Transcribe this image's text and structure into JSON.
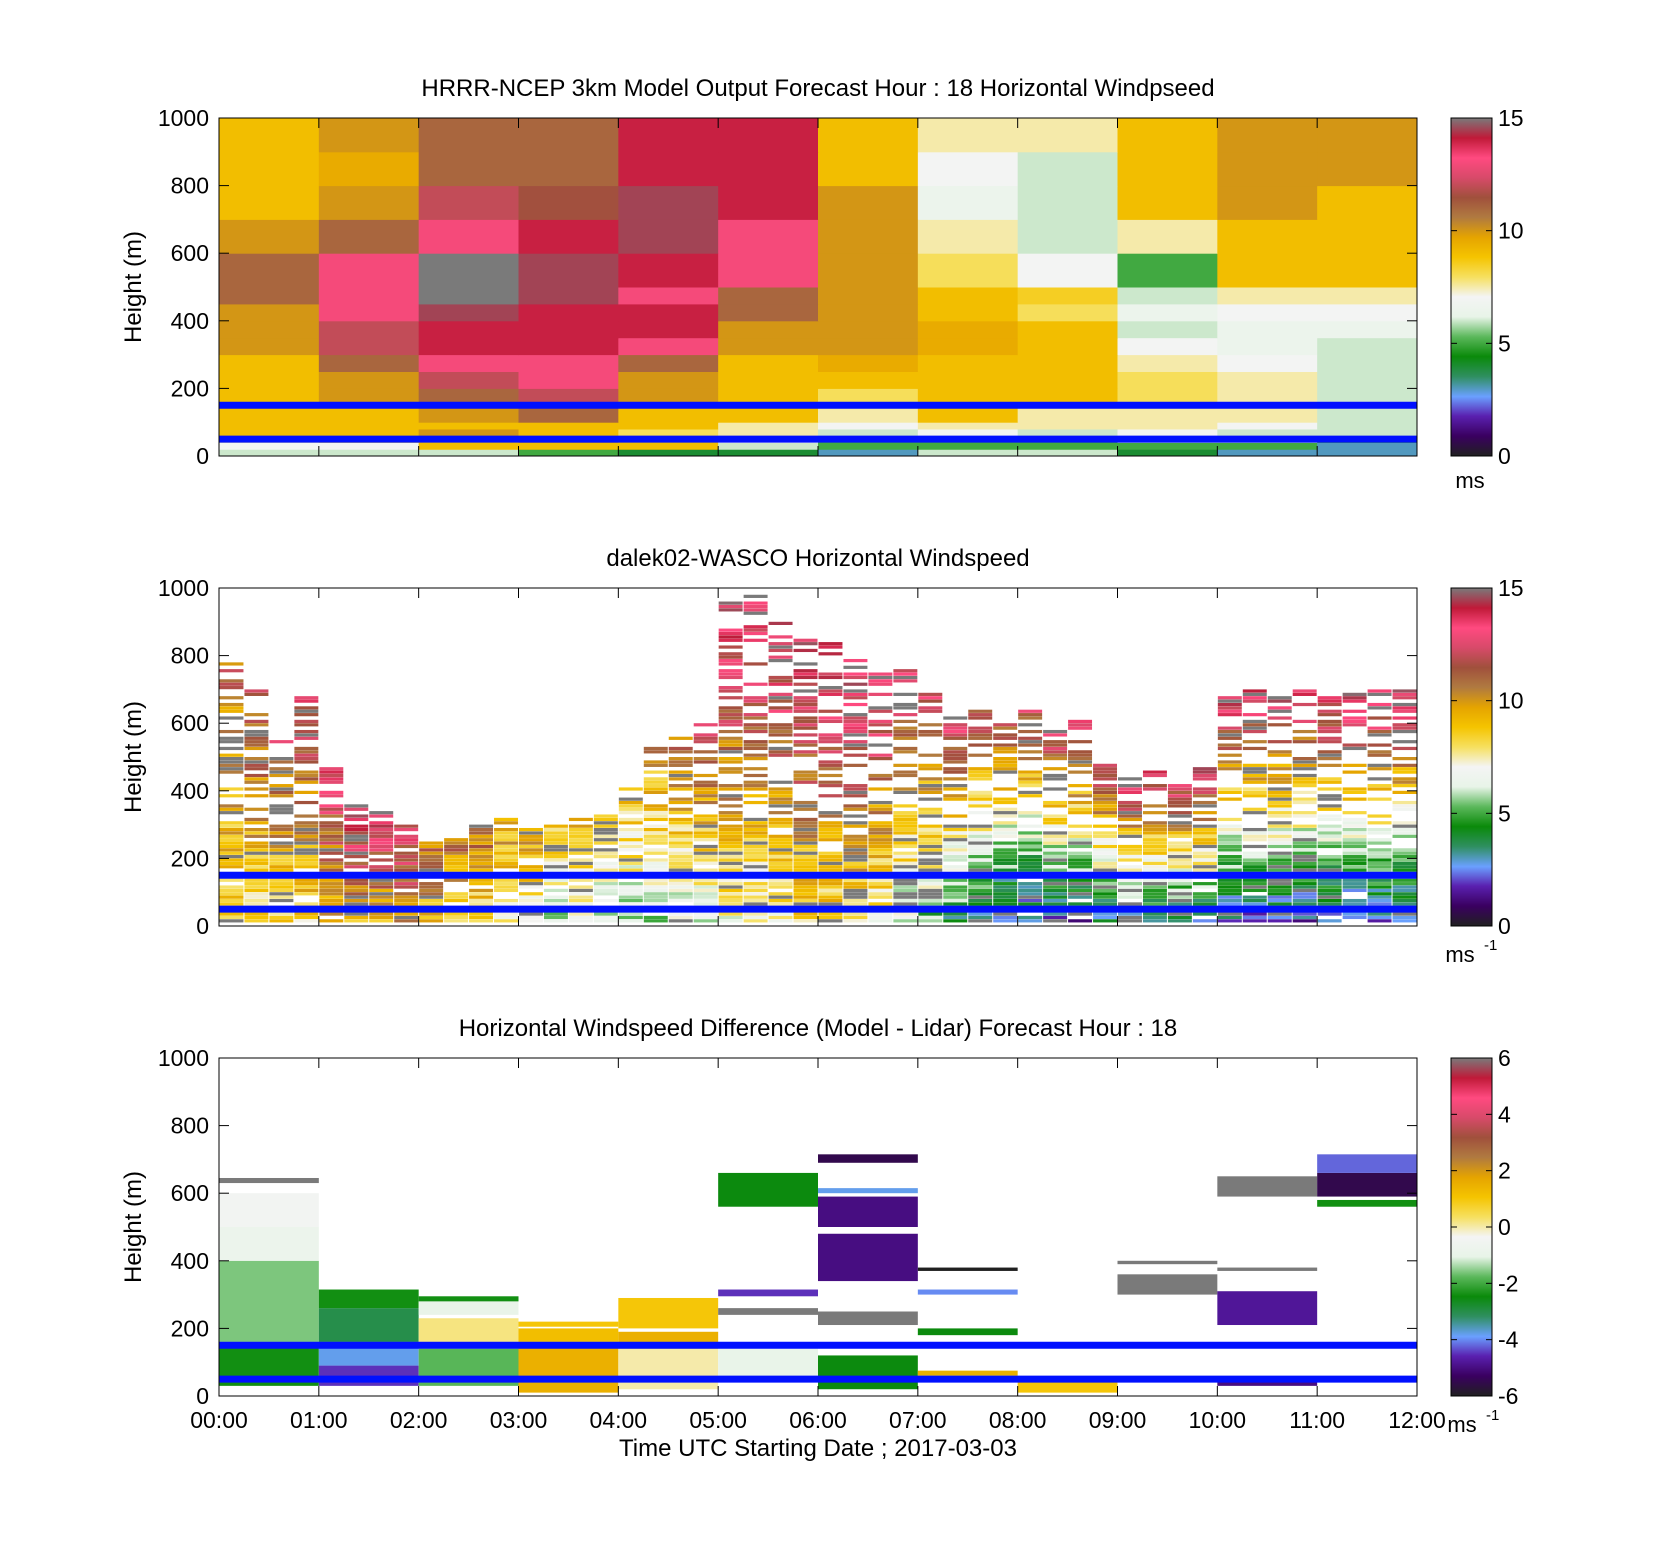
{
  "xlabel": "Time UTC  Starting Date ; 2017-03-03",
  "x_ticks": [
    "00:00",
    "01:00",
    "02:00",
    "03:00",
    "04:00",
    "05:00",
    "06:00",
    "07:00",
    "08:00",
    "09:00",
    "10:00",
    "11:00",
    "12:00"
  ],
  "reference_lines_m": [
    150,
    50
  ],
  "chart_data": [
    {
      "type": "heatmap",
      "title": "HRRR-NCEP 3km Model Output   Forecast Hour : 18 Horizontal Windpseed",
      "ylabel": "Height (m)",
      "ylim": [
        0,
        1000
      ],
      "y_ticks": [
        "0",
        "200",
        "400",
        "600",
        "800",
        "1000"
      ],
      "colorbar": {
        "range": [
          0,
          15
        ],
        "ticks": [
          "0",
          "5",
          "10",
          "15"
        ],
        "unit": "ms"
      },
      "x_hours": [
        0,
        1,
        2,
        3,
        4,
        5,
        6,
        7,
        8,
        9,
        10,
        11
      ],
      "y_bins_m": [
        20,
        40,
        60,
        80,
        100,
        150,
        200,
        250,
        300,
        350,
        400,
        450,
        500,
        600,
        700,
        800,
        900,
        1000
      ],
      "grid_values": [
        [
          6,
          6,
          6,
          5,
          4,
          4,
          3,
          6,
          6,
          4,
          3,
          3
        ],
        [
          7,
          7,
          9,
          9,
          9,
          6,
          5,
          5,
          5,
          5,
          5,
          3
        ],
        [
          7.5,
          8,
          9,
          10,
          9,
          7,
          5,
          5,
          5,
          6,
          6,
          5
        ],
        [
          9,
          9,
          10,
          9,
          8,
          7.5,
          6,
          7,
          6,
          7,
          6,
          6
        ],
        [
          9,
          9,
          9,
          9,
          9,
          7.5,
          7,
          7.5,
          7.5,
          7.5,
          7,
          6
        ],
        [
          9,
          9,
          10,
          11,
          9,
          9,
          7.5,
          9,
          7.5,
          7.5,
          7.5,
          6
        ],
        [
          9,
          10,
          11,
          12,
          10,
          9,
          8,
          9,
          9,
          8,
          7.5,
          6
        ],
        [
          9,
          10,
          12,
          13,
          10,
          9,
          9,
          9,
          9,
          8,
          7.5,
          6
        ],
        [
          9,
          11,
          13,
          13,
          11,
          9,
          9.5,
          9,
          9,
          7.5,
          7,
          6
        ],
        [
          10,
          12,
          14,
          14,
          13,
          10,
          10,
          9.5,
          9,
          7,
          6.5,
          6
        ],
        [
          10,
          12,
          14,
          14,
          14,
          10,
          10,
          9.5,
          9,
          6,
          6.5,
          6.5
        ],
        [
          10,
          13,
          14.5,
          14,
          14,
          11,
          10,
          9,
          8,
          6.5,
          7,
          7
        ],
        [
          11,
          13,
          15,
          14.5,
          13,
          11,
          10,
          9,
          8.5,
          6,
          7.5,
          7.5
        ],
        [
          11,
          13,
          15.5,
          14.5,
          14,
          13,
          10,
          8,
          7,
          5,
          9,
          9
        ],
        [
          10,
          11,
          13,
          14,
          14.5,
          13,
          10,
          7.5,
          6,
          7.5,
          9,
          9
        ],
        [
          9,
          10,
          12,
          11.5,
          14.5,
          14,
          10,
          6.5,
          6,
          9,
          10,
          9
        ],
        [
          9,
          9.5,
          11,
          11,
          14,
          14,
          9,
          7,
          6,
          9,
          10,
          10
        ],
        [
          9,
          10,
          11,
          11,
          14,
          14,
          9,
          7.5,
          7.5,
          9,
          10,
          10
        ]
      ]
    },
    {
      "type": "heatmap",
      "title": "dalek02-WASCO  Horizontal Windspeed",
      "ylabel": "Height (m)",
      "ylim": [
        0,
        1000
      ],
      "y_ticks": [
        "0",
        "200",
        "400",
        "600",
        "800",
        "1000"
      ],
      "colorbar": {
        "range": [
          0,
          15
        ],
        "ticks": [
          "0",
          "5",
          "10",
          "15"
        ],
        "unit": "ms",
        "unit_exp": "-1"
      },
      "note": "profiles every ~15 min; mostly sparse above 400 m",
      "profiles": [
        {
          "t": 0.0,
          "top": 780,
          "low": 8,
          "high": 11
        },
        {
          "t": 0.25,
          "top": 700,
          "low": 8,
          "high": 12
        },
        {
          "t": 0.5,
          "top": 560,
          "low": 8,
          "high": 12
        },
        {
          "t": 0.75,
          "top": 720,
          "low": 8,
          "high": 13
        },
        {
          "t": 1.0,
          "top": 470,
          "low": 9,
          "high": 13
        },
        {
          "t": 1.25,
          "top": 360,
          "low": 9,
          "high": 14
        },
        {
          "t": 1.5,
          "top": 340,
          "low": 9,
          "high": 14
        },
        {
          "t": 1.75,
          "top": 300,
          "low": 10,
          "high": 13
        },
        {
          "t": 2.0,
          "top": 250,
          "low": 9,
          "high": 11
        },
        {
          "t": 2.25,
          "top": 260,
          "low": 8,
          "high": 11
        },
        {
          "t": 2.5,
          "top": 300,
          "low": 8,
          "high": 11
        },
        {
          "t": 2.75,
          "top": 330,
          "low": 7,
          "high": 10
        },
        {
          "t": 3.0,
          "top": 290,
          "low": 7,
          "high": 10
        },
        {
          "t": 3.25,
          "top": 300,
          "low": 6,
          "high": 9
        },
        {
          "t": 3.5,
          "top": 320,
          "low": 6,
          "high": 10
        },
        {
          "t": 3.75,
          "top": 340,
          "low": 6,
          "high": 9
        },
        {
          "t": 4.0,
          "top": 410,
          "low": 6,
          "high": 9
        },
        {
          "t": 4.25,
          "top": 530,
          "low": 6,
          "high": 10
        },
        {
          "t": 4.5,
          "top": 560,
          "low": 6,
          "high": 11
        },
        {
          "t": 4.75,
          "top": 600,
          "low": 6,
          "high": 12
        },
        {
          "t": 5.0,
          "top": 960,
          "low": 7,
          "high": 14
        },
        {
          "t": 5.25,
          "top": 990,
          "low": 7,
          "high": 14
        },
        {
          "t": 5.5,
          "top": 900,
          "low": 7,
          "high": 14
        },
        {
          "t": 5.75,
          "top": 860,
          "low": 8,
          "high": 14
        },
        {
          "t": 6.0,
          "top": 840,
          "low": 8,
          "high": 14
        },
        {
          "t": 6.25,
          "top": 800,
          "low": 8,
          "high": 14
        },
        {
          "t": 6.5,
          "top": 760,
          "low": 7,
          "high": 14
        },
        {
          "t": 6.75,
          "top": 760,
          "low": 6,
          "high": 13
        },
        {
          "t": 7.0,
          "top": 700,
          "low": 5,
          "high": 13
        },
        {
          "t": 7.25,
          "top": 620,
          "low": 4,
          "high": 13
        },
        {
          "t": 7.5,
          "top": 640,
          "low": 3,
          "high": 12
        },
        {
          "t": 7.75,
          "top": 600,
          "low": 2,
          "high": 12
        },
        {
          "t": 8.0,
          "top": 640,
          "low": 2,
          "high": 12
        },
        {
          "t": 8.25,
          "top": 580,
          "low": 2,
          "high": 13
        },
        {
          "t": 8.5,
          "top": 620,
          "low": 2,
          "high": 14
        },
        {
          "t": 8.75,
          "top": 480,
          "low": 3,
          "high": 13
        },
        {
          "t": 9.0,
          "top": 450,
          "low": 3,
          "high": 14
        },
        {
          "t": 9.25,
          "top": 480,
          "low": 3,
          "high": 14
        },
        {
          "t": 9.5,
          "top": 480,
          "low": 3,
          "high": 14
        },
        {
          "t": 9.75,
          "top": 470,
          "low": 3,
          "high": 14
        },
        {
          "t": 10.0,
          "top": 680,
          "low": 2,
          "high": 14
        },
        {
          "t": 10.25,
          "top": 700,
          "low": 2,
          "high": 14
        },
        {
          "t": 10.5,
          "top": 700,
          "low": 2,
          "high": 14
        },
        {
          "t": 10.75,
          "top": 710,
          "low": 2,
          "high": 14
        },
        {
          "t": 11.0,
          "top": 710,
          "low": 2,
          "high": 14
        },
        {
          "t": 11.25,
          "top": 700,
          "low": 2,
          "high": 14
        },
        {
          "t": 11.5,
          "top": 700,
          "low": 2,
          "high": 14
        },
        {
          "t": 11.75,
          "top": 700,
          "low": 2,
          "high": 14
        }
      ]
    },
    {
      "type": "heatmap",
      "title": "Horizontal Windspeed Difference (Model - Lidar) Forecast Hour : 18",
      "ylabel": "Height (m)",
      "ylim": [
        0,
        1000
      ],
      "y_ticks": [
        "0",
        "200",
        "400",
        "600",
        "800",
        "1000"
      ],
      "colorbar": {
        "range": [
          -6,
          6
        ],
        "ticks": [
          "-6",
          "-4",
          "-2",
          "0",
          "2",
          "4",
          "6"
        ],
        "unit": "ms",
        "unit_exp": "-1"
      },
      "bands": [
        {
          "t0": 0,
          "t1": 1,
          "h0": 30,
          "h1": 160,
          "v": -2.4
        },
        {
          "t0": 0,
          "t1": 1,
          "h0": 160,
          "h1": 400,
          "v": -1.6
        },
        {
          "t0": 0,
          "t1": 1,
          "h0": 400,
          "h1": 500,
          "v": -0.8
        },
        {
          "t0": 0,
          "t1": 1,
          "h0": 500,
          "h1": 600,
          "v": -0.5
        },
        {
          "t0": 0,
          "t1": 1,
          "h0": 630,
          "h1": 645,
          "v": 6
        },
        {
          "t0": 1,
          "t1": 2,
          "h0": 30,
          "h1": 90,
          "v": -4.5
        },
        {
          "t0": 1,
          "t1": 2,
          "h0": 90,
          "h1": 160,
          "v": -3.8
        },
        {
          "t0": 1,
          "t1": 2,
          "h0": 160,
          "h1": 260,
          "v": -3
        },
        {
          "t0": 1,
          "t1": 2,
          "h0": 260,
          "h1": 315,
          "v": -2.4
        },
        {
          "t0": 2,
          "t1": 3,
          "h0": 30,
          "h1": 140,
          "v": -1.8
        },
        {
          "t0": 2,
          "t1": 3,
          "h0": 160,
          "h1": 230,
          "v": 0.2
        },
        {
          "t0": 2,
          "t1": 3,
          "h0": 240,
          "h1": 280,
          "v": -1
        },
        {
          "t0": 2,
          "t1": 3,
          "h0": 280,
          "h1": 295,
          "v": -2.4
        },
        {
          "t0": 3,
          "t1": 4,
          "h0": 10,
          "h1": 160,
          "v": 1.5
        },
        {
          "t0": 3,
          "t1": 4,
          "h0": 160,
          "h1": 200,
          "v": 1.2
        },
        {
          "t0": 3,
          "t1": 4,
          "h0": 205,
          "h1": 220,
          "v": 1
        },
        {
          "t0": 4,
          "t1": 5,
          "h0": 20,
          "h1": 140,
          "v": 0
        },
        {
          "t0": 4,
          "t1": 5,
          "h0": 140,
          "h1": 190,
          "v": 1.5
        },
        {
          "t0": 4,
          "t1": 5,
          "h0": 200,
          "h1": 290,
          "v": 1
        },
        {
          "t0": 5,
          "t1": 6,
          "h0": 40,
          "h1": 140,
          "v": -1
        },
        {
          "t0": 5,
          "t1": 6,
          "h0": 240,
          "h1": 260,
          "v": 6
        },
        {
          "t0": 5,
          "t1": 6,
          "h0": 295,
          "h1": 315,
          "v": -4.5
        },
        {
          "t0": 5,
          "t1": 6,
          "h0": 560,
          "h1": 660,
          "v": -2.5
        },
        {
          "t0": 6,
          "t1": 7,
          "h0": 20,
          "h1": 120,
          "v": -2.5
        },
        {
          "t0": 6,
          "t1": 7,
          "h0": 210,
          "h1": 250,
          "v": 6
        },
        {
          "t0": 6,
          "t1": 7,
          "h0": 340,
          "h1": 480,
          "v": -5
        },
        {
          "t0": 6,
          "t1": 7,
          "h0": 500,
          "h1": 590,
          "v": -5
        },
        {
          "t0": 6,
          "t1": 7,
          "h0": 600,
          "h1": 615,
          "v": -3.8
        },
        {
          "t0": 6,
          "t1": 7,
          "h0": 690,
          "h1": 715,
          "v": -5.5
        },
        {
          "t0": 7,
          "t1": 8,
          "h0": 60,
          "h1": 75,
          "v": 1.5
        },
        {
          "t0": 7,
          "t1": 8,
          "h0": 180,
          "h1": 200,
          "v": -2.5
        },
        {
          "t0": 7,
          "t1": 8,
          "h0": 300,
          "h1": 315,
          "v": -4
        },
        {
          "t0": 7,
          "t1": 8,
          "h0": 370,
          "h1": 380,
          "v": -6
        },
        {
          "t0": 8,
          "t1": 9,
          "h0": 10,
          "h1": 40,
          "v": 1
        },
        {
          "t0": 9,
          "t1": 10,
          "h0": 300,
          "h1": 360,
          "v": 6
        },
        {
          "t0": 9,
          "t1": 10,
          "h0": 390,
          "h1": 400,
          "v": 6
        },
        {
          "t0": 10,
          "t1": 11,
          "h0": 210,
          "h1": 310,
          "v": -4.8
        },
        {
          "t0": 10,
          "t1": 11,
          "h0": 370,
          "h1": 380,
          "v": 6
        },
        {
          "t0": 10,
          "t1": 11,
          "h0": 30,
          "h1": 40,
          "v": -5
        },
        {
          "t0": 10,
          "t1": 11,
          "h0": 590,
          "h1": 650,
          "v": 6
        },
        {
          "t0": 11,
          "t1": 12,
          "h0": 560,
          "h1": 580,
          "v": -2.4
        },
        {
          "t0": 11,
          "t1": 12,
          "h0": 590,
          "h1": 660,
          "v": -5.5
        },
        {
          "t0": 11,
          "t1": 12,
          "h0": 660,
          "h1": 715,
          "v": -4.2
        }
      ]
    }
  ],
  "colormap_stops": [
    "#202020",
    "#3a0060",
    "#5a20b0",
    "#6aa0ff",
    "#2f8f60",
    "#0a8a0a",
    "#5cb85c",
    "#e8f4e8",
    "#f4f4f4",
    "#f6e060",
    "#f5c400",
    "#e5a400",
    "#b07a40",
    "#a0503c",
    "#d84a6a",
    "#ff4a80",
    "#c01a38",
    "#7a7a7a"
  ]
}
